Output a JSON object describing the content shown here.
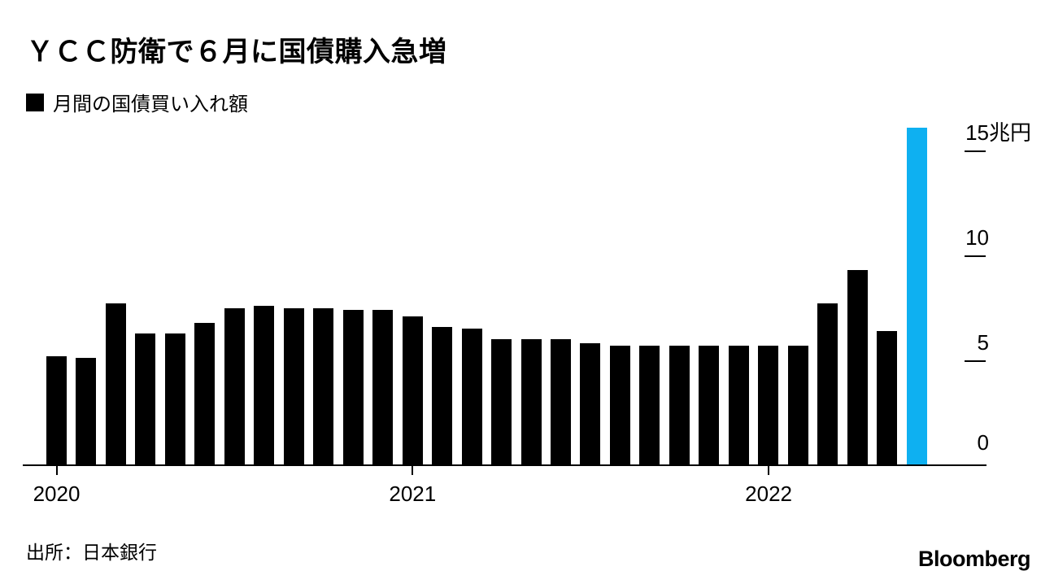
{
  "header": {
    "title": "ＹＣＣ防衛で６月に国債購入急増"
  },
  "legend": {
    "label": "月間の国債買い入れ額"
  },
  "footer": {
    "source": "出所：日本銀行",
    "brand": "Bloomberg"
  },
  "chart_data": {
    "type": "bar",
    "title": "ＹＣＣ防衛で６月に国債購入急増",
    "series_name": "月間の国債買い入れ額",
    "unit": "兆円",
    "categories": [
      "2020-01",
      "2020-02",
      "2020-03",
      "2020-04",
      "2020-05",
      "2020-06",
      "2020-07",
      "2020-08",
      "2020-09",
      "2020-10",
      "2020-11",
      "2020-12",
      "2021-01",
      "2021-02",
      "2021-03",
      "2021-04",
      "2021-05",
      "2021-06",
      "2021-07",
      "2021-08",
      "2021-09",
      "2021-10",
      "2021-11",
      "2021-12",
      "2022-01",
      "2022-02",
      "2022-03",
      "2022-04",
      "2022-05",
      "2022-06"
    ],
    "values": [
      5.2,
      5.1,
      7.7,
      6.3,
      6.3,
      6.8,
      7.5,
      7.6,
      7.5,
      7.5,
      7.4,
      7.4,
      7.1,
      6.6,
      6.5,
      6.0,
      6.0,
      6.0,
      5.8,
      5.7,
      5.7,
      5.7,
      5.7,
      5.7,
      5.7,
      5.7,
      7.7,
      9.3,
      6.4,
      16.1
    ],
    "bar_color": "#000000",
    "highlight_color": "#0EB0F1",
    "highlight_index": 29,
    "x_ticks": [
      {
        "label": "2020",
        "index": 0
      },
      {
        "label": "2021",
        "index": 12
      },
      {
        "label": "2022",
        "index": 24
      }
    ],
    "y_ticks": [
      {
        "label": "15",
        "suffix": "兆円",
        "value": 15
      },
      {
        "label": "10",
        "suffix": "",
        "value": 10
      },
      {
        "label": "5",
        "suffix": "",
        "value": 5
      },
      {
        "label": "0",
        "suffix": "",
        "value": 0
      }
    ],
    "ylim": [
      0,
      16.5
    ],
    "grid": false,
    "legend_position": "top-left",
    "yaxis_side": "right"
  }
}
